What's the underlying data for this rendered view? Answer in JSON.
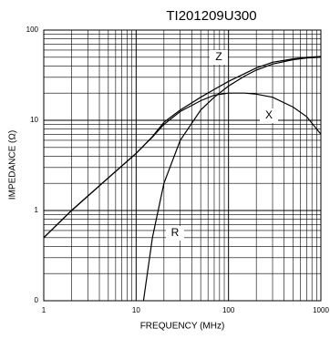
{
  "chart_data": {
    "type": "line",
    "title": "TI201209U300",
    "x_label": "FREQUENCY (MHz)",
    "y_label": "IMPEDANCE (Ω)",
    "x": [
      1,
      2,
      5,
      10,
      12,
      15,
      20,
      30,
      50,
      70,
      100,
      150,
      200,
      300,
      500,
      700,
      1000
    ],
    "series": [
      {
        "name": "Z",
        "color": "#000000",
        "values": [
          0.5,
          1,
          2.3,
          4.3,
          5.2,
          6.6,
          9.5,
          13,
          18,
          22,
          27,
          33,
          38,
          44,
          48,
          50,
          51
        ]
      },
      {
        "name": "X",
        "color": "#000000",
        "values": [
          0.5,
          1,
          2.3,
          4.3,
          5.2,
          6.5,
          9,
          12.5,
          16.5,
          19,
          20,
          20,
          19.5,
          18,
          14,
          11,
          7
        ]
      },
      {
        "name": "R",
        "color": "#000000",
        "values": [
          null,
          null,
          null,
          null,
          0.1,
          0.5,
          2,
          6,
          13,
          18,
          24,
          31,
          36,
          42,
          47,
          49,
          50
        ]
      }
    ],
    "xlim": [
      1,
      1000
    ],
    "xticks": [
      1,
      10,
      100,
      1000
    ],
    "ylim": [
      0.1,
      100
    ],
    "yticks": [
      100,
      10,
      1,
      {
        "value": 0.1,
        "label": "0"
      }
    ],
    "xscale": "log",
    "yscale": "log",
    "grid": true
  }
}
